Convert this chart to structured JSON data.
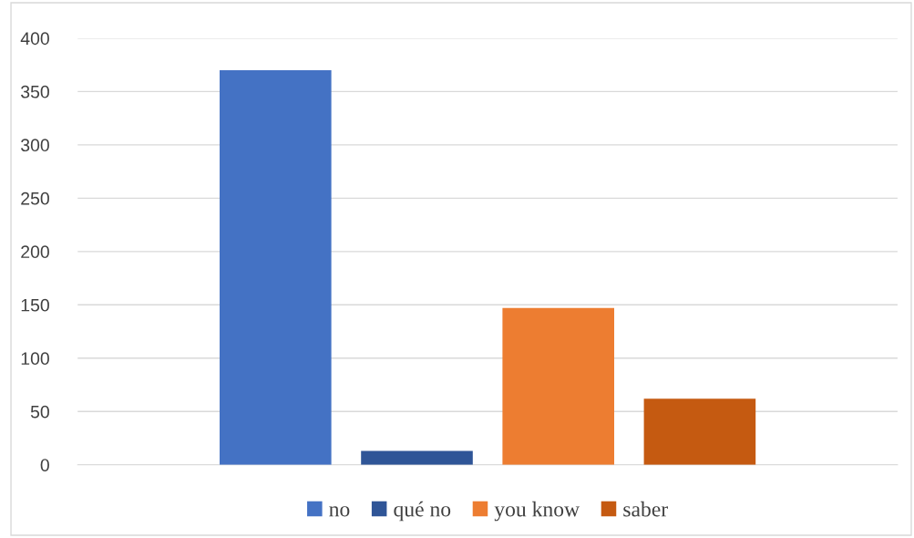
{
  "chart_data": {
    "type": "bar",
    "categories": [
      null
    ],
    "series": [
      {
        "name": "no",
        "color": "#4472c4",
        "values": [
          370
        ]
      },
      {
        "name": "qué no",
        "color": "#2f5597",
        "values": [
          13
        ]
      },
      {
        "name": "you know",
        "color": "#ed7d31",
        "values": [
          147
        ]
      },
      {
        "name": "saber",
        "color": "#c55a11",
        "values": [
          62
        ]
      }
    ],
    "ylim": [
      0,
      400
    ],
    "yticks": [
      0,
      50,
      100,
      150,
      200,
      250,
      300,
      350,
      400
    ],
    "grid": "y",
    "legend": "bottom"
  }
}
